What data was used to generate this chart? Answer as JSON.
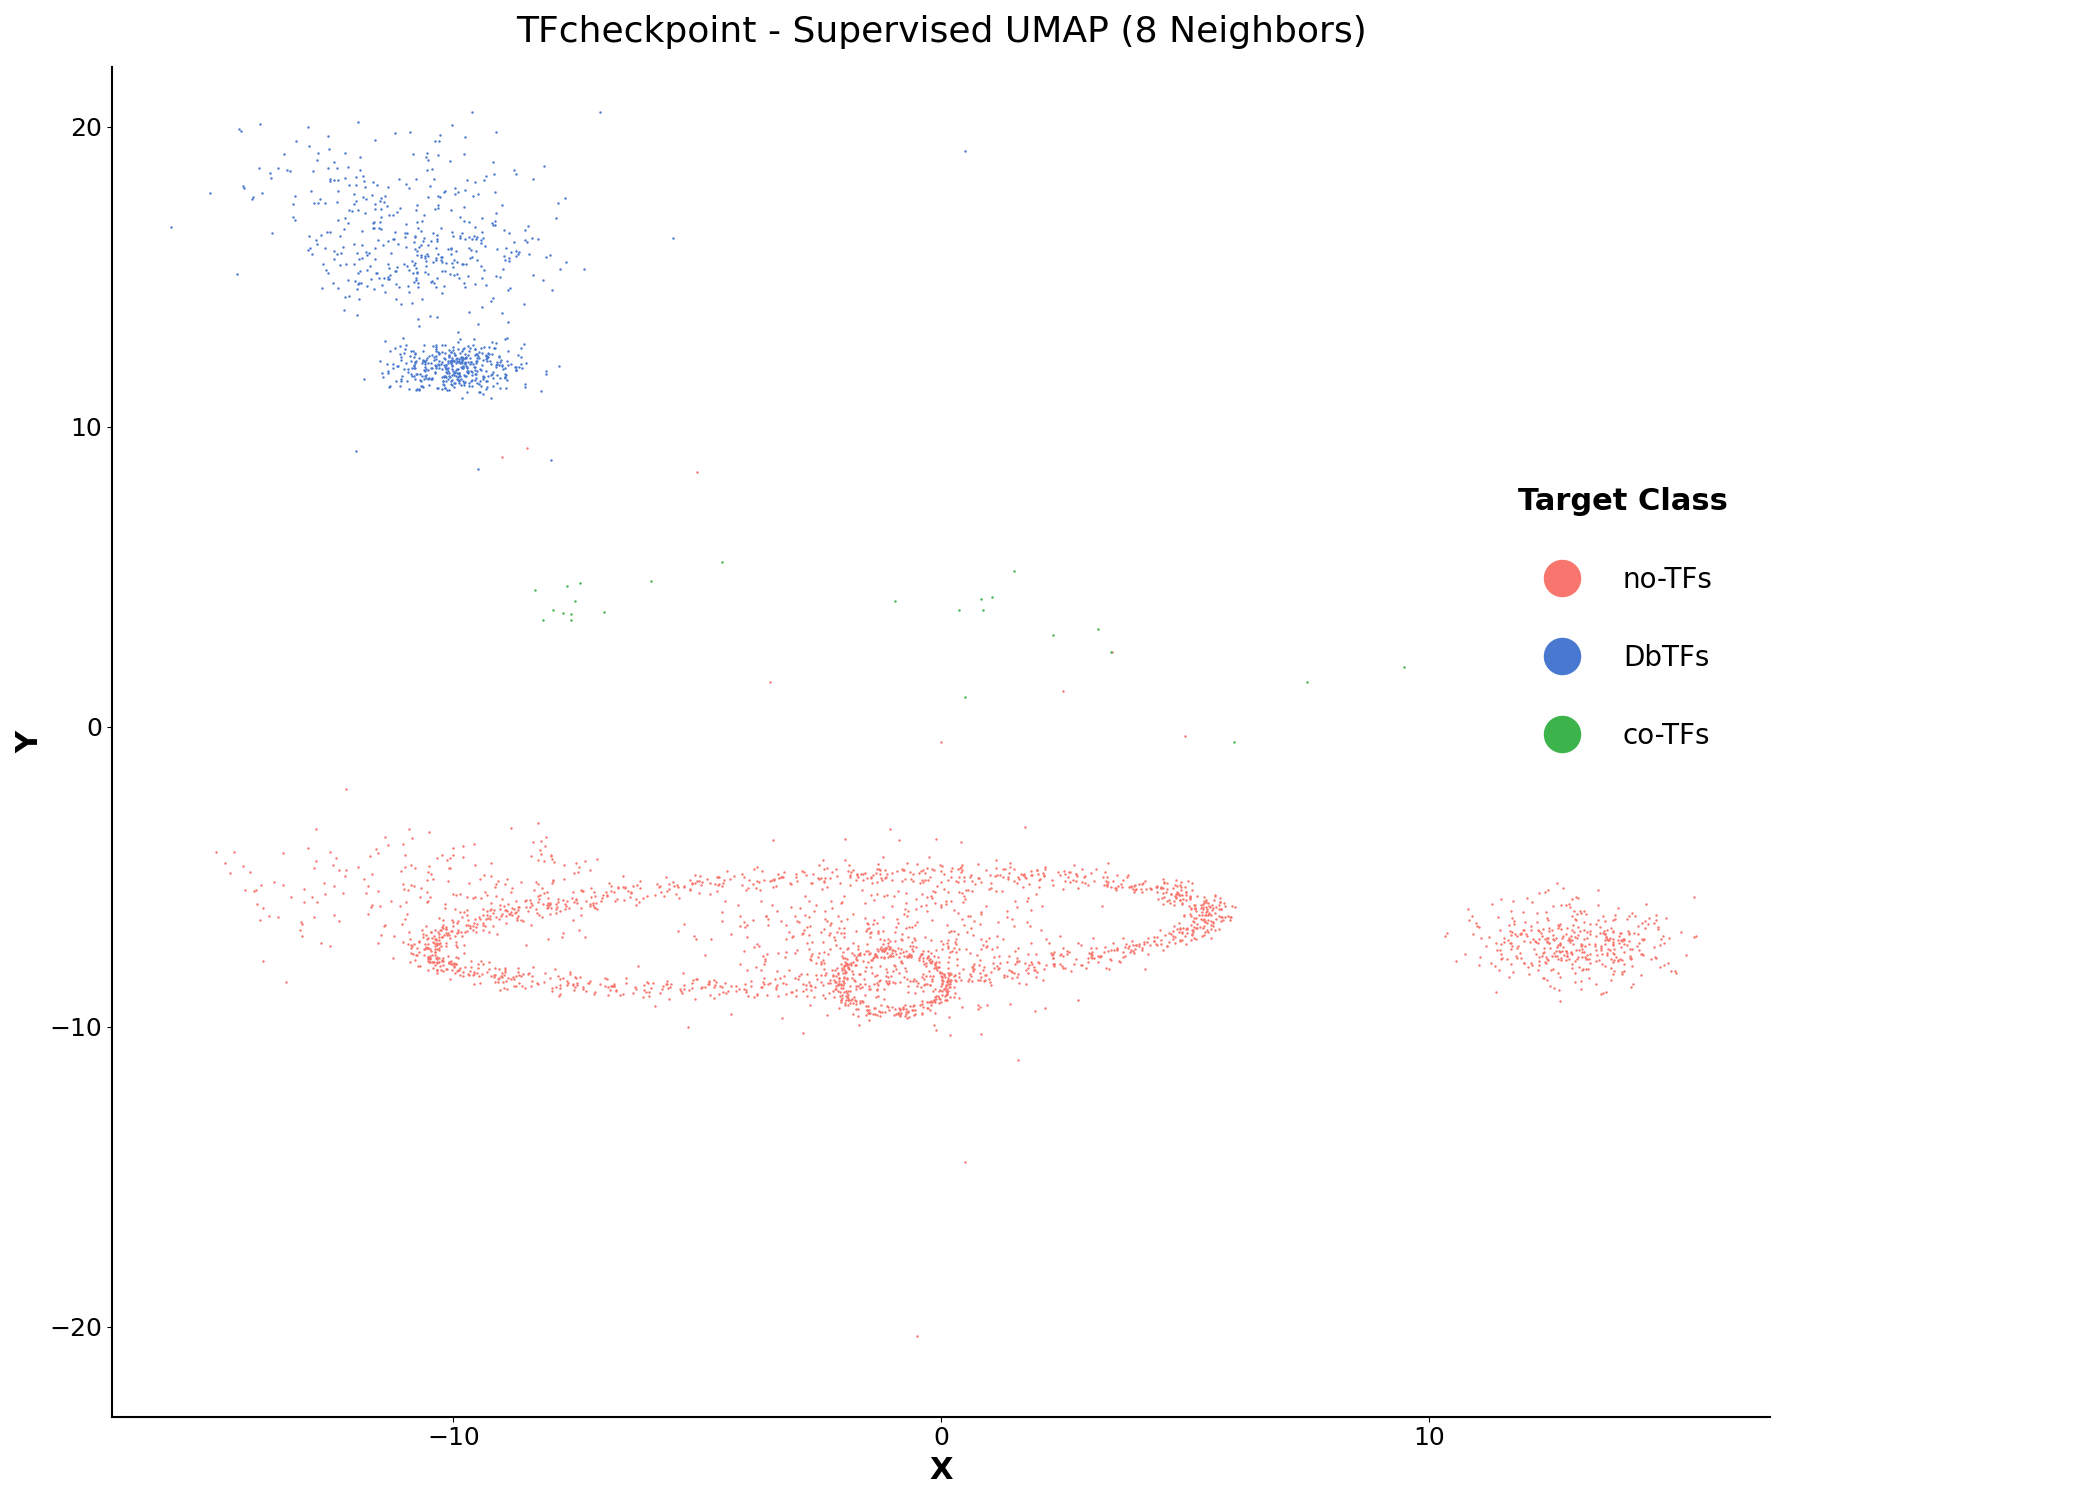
{
  "title": "TFcheckpoint - Supervised UMAP (8 Neighbors)",
  "xlabel": "X",
  "ylabel": "Y",
  "xlim": [
    -17,
    17
  ],
  "ylim": [
    -23,
    22
  ],
  "xticks": [
    -10,
    0,
    10
  ],
  "yticks": [
    -20,
    -10,
    0,
    10,
    20
  ],
  "background_color": "#ffffff",
  "legend_title": "Target Class",
  "classes": [
    "no-TFs",
    "DbTFs",
    "co-TFs"
  ],
  "colors": {
    "no-TFs": "#F8766D",
    "DbTFs": "#4878CF",
    "co-TFs": "#3CB44B"
  },
  "point_size": 3,
  "title_fontsize": 26,
  "label_fontsize": 22,
  "tick_fontsize": 18,
  "legend_fontsize": 20
}
